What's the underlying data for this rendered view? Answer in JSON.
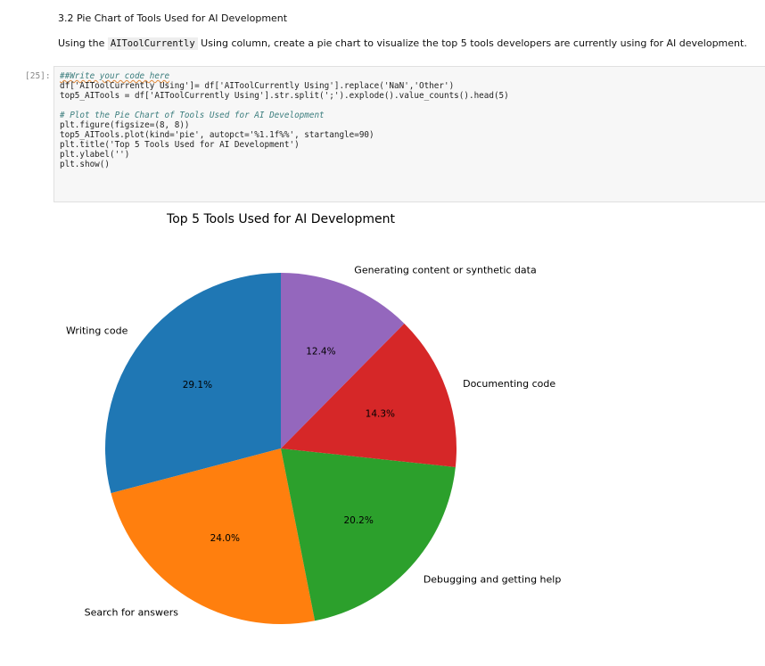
{
  "notebook": {
    "section_heading": "3.2 Pie Chart of Tools Used for AI Development",
    "instruction_prefix": "Using the",
    "instruction_code": "AIToolCurrently",
    "instruction_suffix": "Using column, create a pie chart to visualize the top 5 tools developers are currently using for AI development.",
    "execution_count": "[25]:",
    "code": {
      "line1": "##Write your code here",
      "line2a": "df['AIToolCurrently Using']= df['AIToolCurrently Using'].replace('NaN','Other')",
      "line3": "top5_AITools = df['AIToolCurrently Using'].str.split(';').explode().value_counts().head(5)",
      "line5": "# Plot the Pie Chart of Tools Used for AI Development",
      "line6": "plt.figure(figsize=(8, 8))",
      "line7": "top5_AITools.plot(kind='pie', autopct='%1.1f%%', startangle=90)",
      "line8": "plt.title('Top 5 Tools Used for AI Development')",
      "line9": "plt.ylabel('')",
      "line10": "plt.show()"
    }
  },
  "colors": {
    "blue": "#1f77b4",
    "orange": "#ff7f0e",
    "green": "#2ca02c",
    "red": "#d62728",
    "purple": "#9467bd"
  },
  "chart_data": {
    "type": "pie",
    "title": "Top 5 Tools Used for AI Development",
    "start_angle_deg": 90,
    "direction": "counterclockwise",
    "slices": [
      {
        "label": "Writing code",
        "value": 29.1,
        "pct_label": "29.1%",
        "color": "#1f77b4"
      },
      {
        "label": "Search for answers",
        "value": 24.0,
        "pct_label": "24.0%",
        "color": "#ff7f0e"
      },
      {
        "label": "Debugging and getting help",
        "value": 20.2,
        "pct_label": "20.2%",
        "color": "#2ca02c"
      },
      {
        "label": "Documenting code",
        "value": 14.3,
        "pct_label": "14.3%",
        "color": "#d62728"
      },
      {
        "label": "Generating content or synthetic data",
        "value": 12.4,
        "pct_label": "12.4%",
        "color": "#9467bd"
      }
    ]
  }
}
